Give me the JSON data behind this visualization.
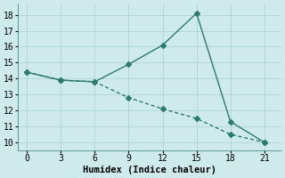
{
  "line1_x": [
    0,
    3,
    6,
    9,
    12,
    15,
    18,
    21
  ],
  "line1_y": [
    14.4,
    13.9,
    13.8,
    14.9,
    16.1,
    18.1,
    11.3,
    10.0
  ],
  "line2_x": [
    0,
    3,
    6,
    9,
    12,
    15,
    18,
    21
  ],
  "line2_y": [
    14.4,
    13.9,
    13.8,
    12.8,
    12.1,
    11.5,
    10.5,
    10.0
  ],
  "line_color": "#2d7a6e",
  "marker": "D",
  "markersize": 3,
  "linewidth": 1.0,
  "xlabel": "Humidex (Indice chaleur)",
  "xlim": [
    -0.8,
    22.5
  ],
  "ylim": [
    9.5,
    18.7
  ],
  "xticks": [
    0,
    3,
    6,
    9,
    12,
    15,
    18,
    21
  ],
  "yticks": [
    10,
    11,
    12,
    13,
    14,
    15,
    16,
    17,
    18
  ],
  "bg_color": "#ceeaea",
  "grid_color": "#afd4d4",
  "font_family": "monospace",
  "xlabel_fontsize": 7.5,
  "tick_fontsize": 7
}
